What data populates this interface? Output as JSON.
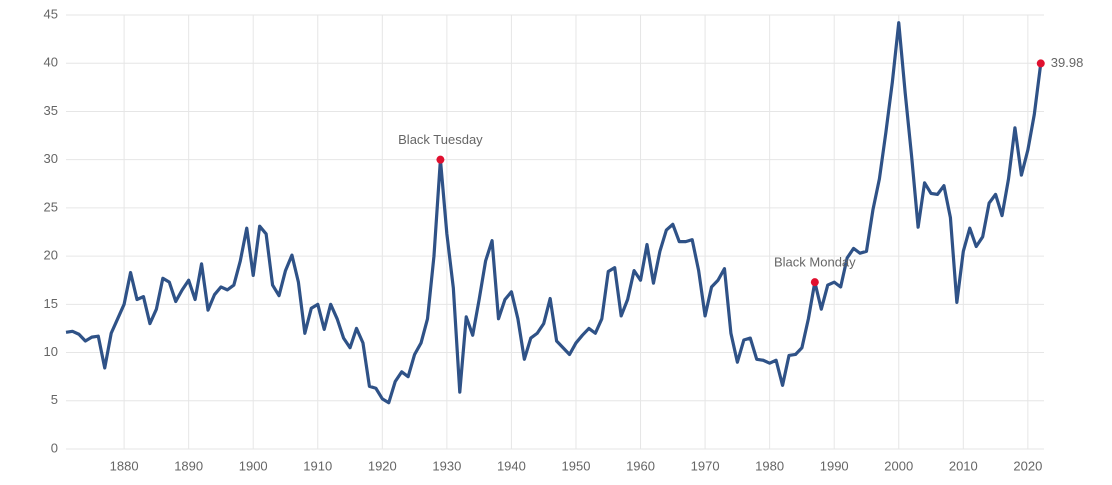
{
  "chart_data": {
    "type": "line",
    "x": [
      1871,
      1872,
      1873,
      1874,
      1875,
      1876,
      1877,
      1878,
      1879,
      1880,
      1881,
      1882,
      1883,
      1884,
      1885,
      1886,
      1887,
      1888,
      1889,
      1890,
      1891,
      1892,
      1893,
      1894,
      1895,
      1896,
      1897,
      1898,
      1899,
      1900,
      1901,
      1902,
      1903,
      1904,
      1905,
      1906,
      1907,
      1908,
      1909,
      1910,
      1911,
      1912,
      1913,
      1914,
      1915,
      1916,
      1917,
      1918,
      1919,
      1920,
      1921,
      1922,
      1923,
      1924,
      1925,
      1926,
      1927,
      1928,
      1929,
      1930,
      1931,
      1932,
      1933,
      1934,
      1935,
      1936,
      1937,
      1938,
      1939,
      1940,
      1941,
      1942,
      1943,
      1944,
      1945,
      1946,
      1947,
      1948,
      1949,
      1950,
      1951,
      1952,
      1953,
      1954,
      1955,
      1956,
      1957,
      1958,
      1959,
      1960,
      1961,
      1962,
      1963,
      1964,
      1965,
      1966,
      1967,
      1968,
      1969,
      1970,
      1971,
      1972,
      1973,
      1974,
      1975,
      1976,
      1977,
      1978,
      1979,
      1980,
      1981,
      1982,
      1983,
      1984,
      1985,
      1986,
      1987,
      1988,
      1989,
      1990,
      1991,
      1992,
      1993,
      1994,
      1995,
      1996,
      1997,
      1998,
      1999,
      2000,
      2001,
      2002,
      2003,
      2004,
      2005,
      2006,
      2007,
      2008,
      2009,
      2010,
      2011,
      2012,
      2013,
      2014,
      2015,
      2016,
      2017,
      2018,
      2019,
      2020,
      2021,
      2022
    ],
    "values": [
      12.1,
      12.2,
      11.9,
      11.2,
      11.6,
      11.7,
      8.4,
      12,
      13.5,
      15,
      18.3,
      15.5,
      15.8,
      13,
      14.5,
      17.7,
      17.3,
      15.3,
      16.5,
      17.5,
      15.5,
      19.2,
      14.4,
      16,
      16.8,
      16.5,
      17,
      19.5,
      22.9,
      18,
      23.1,
      22.3,
      17,
      15.9,
      18.5,
      20.1,
      17.3,
      12,
      14.6,
      15,
      12.4,
      15,
      13.5,
      11.5,
      10.5,
      12.5,
      11,
      6.5,
      6.3,
      5.2,
      4.8,
      7,
      8,
      7.5,
      9.8,
      11,
      13.5,
      20,
      30,
      22.3,
      16.7,
      5.9,
      13.7,
      11.8,
      15.5,
      19.5,
      21.6,
      13.5,
      15.5,
      16.3,
      13.5,
      9.3,
      11.5,
      12,
      13,
      15.6,
      11.2,
      10.5,
      9.8,
      11,
      11.8,
      12.5,
      12,
      13.5,
      18.4,
      18.8,
      13.8,
      15.5,
      18.5,
      17.5,
      21.2,
      17.2,
      20.5,
      22.7,
      23.3,
      21.5,
      21.5,
      21.7,
      18.5,
      13.8,
      16.8,
      17.5,
      18.7,
      12,
      9,
      11.3,
      11.5,
      9.3,
      9.2,
      8.9,
      9.2,
      6.6,
      9.7,
      9.8,
      10.5,
      13.5,
      17.3,
      14.5,
      17,
      17.3,
      16.8,
      19.8,
      20.8,
      20.3,
      20.5,
      24.8,
      28,
      32.8,
      38,
      44.2,
      36.9,
      30.3,
      23,
      27.6,
      26.5,
      26.4,
      27.3,
      24,
      15.2,
      20.5,
      22.9,
      21,
      22,
      25.5,
      26.4,
      24.2,
      28,
      33.3,
      28.4,
      31,
      34.7,
      39.98
    ],
    "color": "#2f5287",
    "annotations": [
      {
        "text": "Black Tuesday",
        "x": 1929
      },
      {
        "text": "Black Monday",
        "x": 1987
      }
    ],
    "marker_color": "#e0102f",
    "xlim": [
      1871,
      2022.5
    ],
    "ylim": [
      0,
      45
    ],
    "xticks": [
      1880,
      1890,
      1900,
      1910,
      1920,
      1930,
      1940,
      1950,
      1960,
      1970,
      1980,
      1990,
      2000,
      2010,
      2020
    ],
    "yticks": [
      0,
      5,
      10,
      15,
      20,
      25,
      30,
      35,
      40,
      45
    ],
    "grid": true
  }
}
